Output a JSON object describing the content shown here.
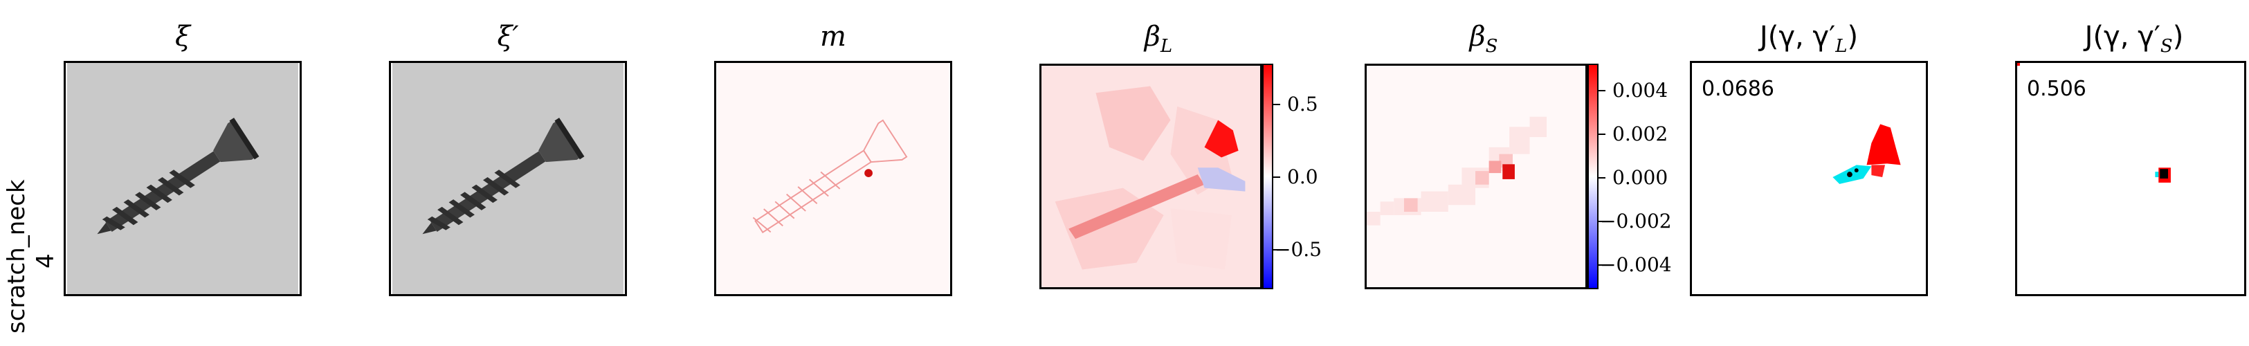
{
  "row": {
    "label_line1": "scratch_neck",
    "label_line2": "4"
  },
  "panels": [
    {
      "title": "ξ"
    },
    {
      "title": "ξ′"
    },
    {
      "title": "m"
    },
    {
      "title": "βL",
      "title_main": "β",
      "title_sub": "L"
    },
    {
      "title": "βS",
      "title_main": "β",
      "title_sub": "S"
    },
    {
      "title": "J(γ, γ′L)",
      "title_text": "J(γ, γ′",
      "title_sub": "L",
      "title_end": ")",
      "score": "0.0686"
    },
    {
      "title": "J(γ, γ′S)",
      "title_text": "J(γ, γ′",
      "title_sub": "S",
      "title_end": ")",
      "score": "0.506"
    }
  ],
  "colorbar_L": {
    "ticks": [
      "0.5",
      "0.0",
      "−0.5"
    ],
    "colormap": "bwr"
  },
  "colorbar_S": {
    "ticks": [
      "0.004",
      "0.002",
      "0.000",
      "−0.002",
      "−0.004"
    ],
    "colormap": "bwr"
  },
  "colors": {
    "red": "#ff0000",
    "blue": "#0000ff",
    "cyan": "#00e5ee",
    "gray_bg": "#c8c8c8"
  }
}
